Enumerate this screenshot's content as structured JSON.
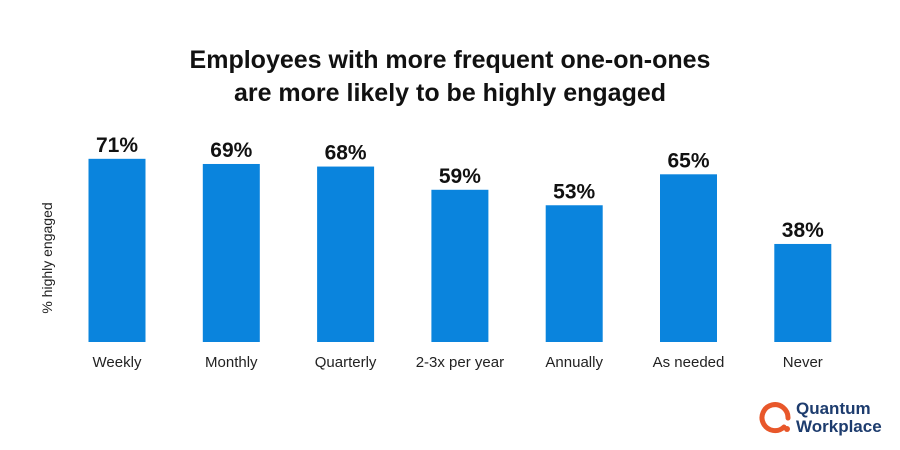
{
  "chart_data": {
    "type": "bar",
    "title_lines": [
      "Employees with more frequent one-on-ones",
      "are more likely to be highly engaged"
    ],
    "ylabel": "% highly engaged",
    "xlabel": "",
    "categories": [
      "Weekly",
      "Monthly",
      "Quarterly",
      "2-3x per year",
      "Annually",
      "As needed",
      "Never"
    ],
    "values": [
      71,
      69,
      68,
      59,
      53,
      65,
      38
    ],
    "data_labels": [
      "71%",
      "69%",
      "68%",
      "59%",
      "53%",
      "65%",
      "38%"
    ],
    "ylim": [
      0,
      100
    ],
    "grid": false,
    "bar_color": "#0a84dd"
  },
  "logo": {
    "line1": "Quantum",
    "line2": "Workplace",
    "ring_color": "#e8572a",
    "text_color": "#1d3c6e"
  }
}
